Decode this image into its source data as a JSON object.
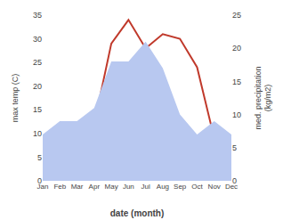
{
  "chart_data": {
    "type": "line",
    "xlabel": "date (month)",
    "ylabel": "max temp (C)",
    "y2label": "med. precipitation\n(kg/m2)",
    "categories": [
      "Jan",
      "Feb",
      "Mar",
      "Apr",
      "May",
      "Jun",
      "Jul",
      "Aug",
      "Sep",
      "Oct",
      "Nov",
      "Dec"
    ],
    "series": [
      {
        "type": "area",
        "axis": "y2",
        "color": "#b8c8f0",
        "values": [
          7,
          9,
          9,
          11,
          18,
          18,
          21,
          17,
          10,
          7,
          9,
          7
        ]
      },
      {
        "type": "line",
        "color": "#c0392b",
        "values": [
          4,
          9,
          12,
          12,
          29,
          34,
          28,
          31,
          30,
          24,
          9,
          4
        ]
      }
    ],
    "ylim": [
      0,
      35
    ],
    "yticks": [
      0,
      5,
      10,
      15,
      20,
      25,
      30,
      35
    ],
    "y2lim": [
      0,
      25
    ],
    "y2ticks": [
      0,
      5,
      10,
      15,
      20,
      25
    ],
    "grid": false
  }
}
